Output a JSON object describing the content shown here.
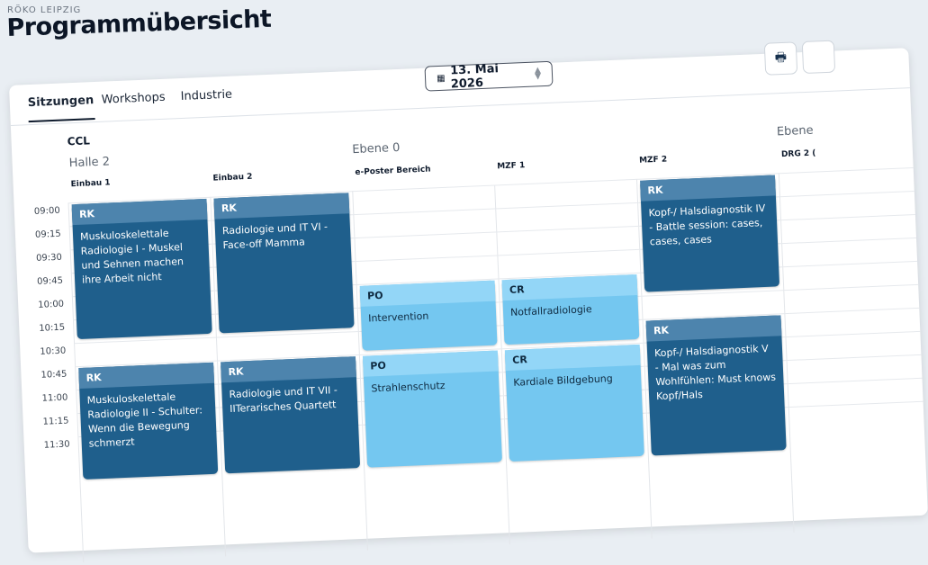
{
  "header": {
    "org": "RÖKO LEIPZIG",
    "title": "Programmübersicht"
  },
  "tabs": [
    {
      "label": "Sitzungen",
      "active": true
    },
    {
      "label": "Workshops"
    },
    {
      "label": "Industrie"
    }
  ],
  "date_picker": {
    "value": "13. Mai 2026",
    "icon": "calendar-icon"
  },
  "toolbar": {
    "print_icon": "printer-icon"
  },
  "groups": {
    "ccl": "CCL",
    "halle2": "Halle 2",
    "ebene0": "Ebene 0",
    "ebene_next": "Ebene"
  },
  "rooms": [
    "Einbau 1",
    "Einbau 2",
    "e-Poster Bereich",
    "MZF 1",
    "MZF 2",
    "DRG 2 ("
  ],
  "times": [
    "09:00",
    "09:15",
    "09:30",
    "09:45",
    "10:00",
    "10:15",
    "10:30",
    "10:45",
    "11:00",
    "11:15",
    "11:30"
  ],
  "colors": {
    "dark": "#1f5f8c",
    "dark_header": "#4d84ad",
    "light": "#74c7f0",
    "light_header": "#93d6f7"
  },
  "events": [
    {
      "room": 0,
      "start": "09:00",
      "end": "10:30",
      "code": "RK",
      "title": "Muskuloskelettale Radiologie I - Muskel und Sehnen machen ihre Arbeit nicht",
      "style": "dark"
    },
    {
      "room": 0,
      "start": "10:45",
      "end": "12:00",
      "code": "RK",
      "title": "Muskuloskelettale Radiologie II - Schulter: Wenn die Bewegung schmerzt",
      "style": "dark"
    },
    {
      "room": 1,
      "start": "09:00",
      "end": "10:30",
      "code": "RK",
      "title": "Radiologie und IT VI - Face-off Mamma",
      "style": "dark"
    },
    {
      "room": 1,
      "start": "10:45",
      "end": "12:00",
      "code": "RK",
      "title": "Radiologie und IT VII - IITerarisches Quartett",
      "style": "dark"
    },
    {
      "room": 2,
      "start": "10:00",
      "end": "10:45",
      "code": "PO",
      "title": "Intervention",
      "style": "light"
    },
    {
      "room": 2,
      "start": "10:45",
      "end": "12:00",
      "code": "PO",
      "title": "Strahlenschutz",
      "style": "light"
    },
    {
      "room": 3,
      "start": "10:00",
      "end": "10:45",
      "code": "CR",
      "title": "Notfallradiologie",
      "style": "light"
    },
    {
      "room": 3,
      "start": "10:45",
      "end": "12:00",
      "code": "CR",
      "title": "Kardiale Bildgebung",
      "style": "light"
    },
    {
      "room": 4,
      "start": "09:00",
      "end": "10:15",
      "code": "RK",
      "title": "Kopf-/ Halsdiagnostik IV - Battle session: cases, cases, cases",
      "style": "dark"
    },
    {
      "room": 4,
      "start": "10:30",
      "end": "12:00",
      "code": "RK",
      "title": "Kopf-/ Halsdiagnostik V - Mal was zum Wohlfühlen: Must knows Kopf/Hals",
      "style": "dark"
    }
  ]
}
